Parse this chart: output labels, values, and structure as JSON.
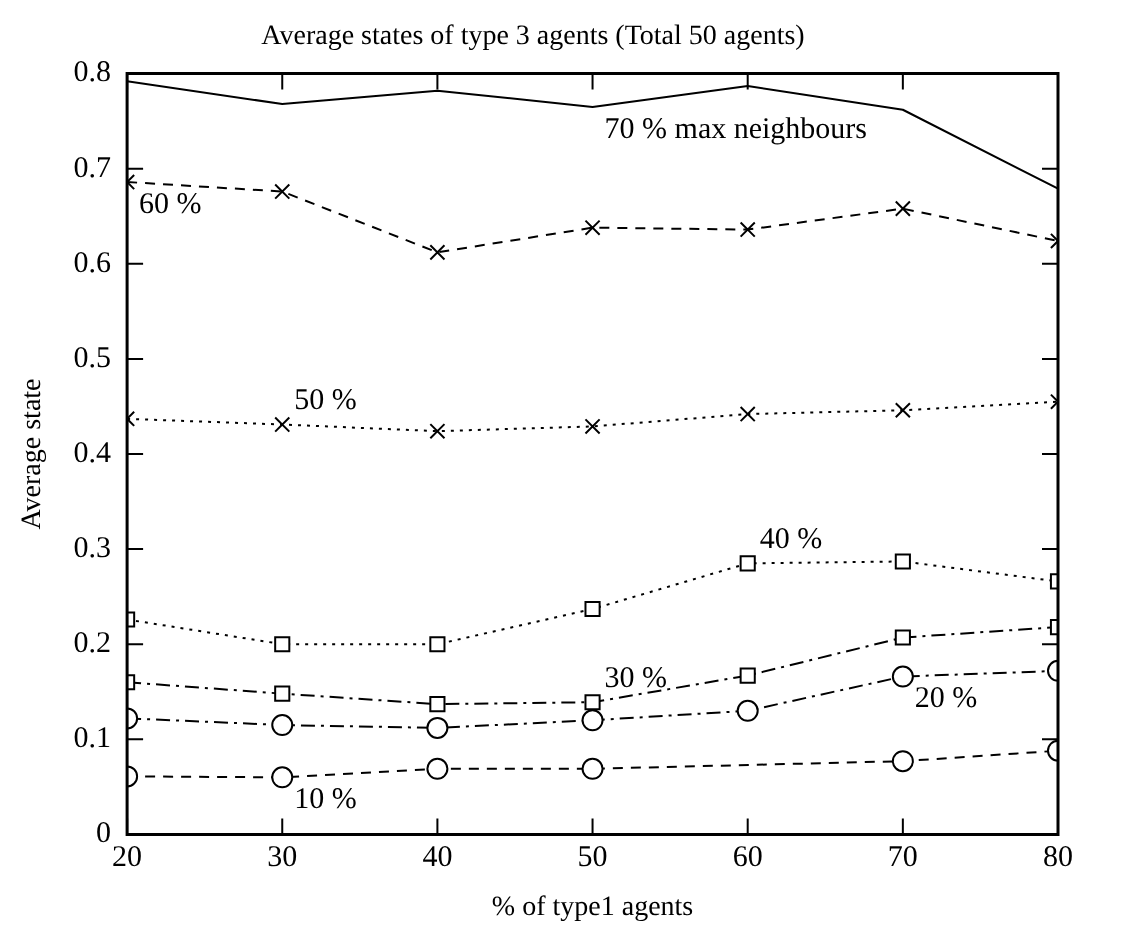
{
  "chart_data": {
    "type": "line",
    "title": "Average states of type 3 agents (Total 50 agents)",
    "xlabel": "% of type1 agents",
    "ylabel": "Average state",
    "x": [
      20,
      30,
      40,
      50,
      60,
      70,
      80
    ],
    "series": [
      {
        "color": "#000000",
        "marker": "none",
        "line_style": "solid",
        "values": [
          0.792,
          0.768,
          0.782,
          0.765,
          0.787,
          0.762,
          0.679
        ]
      },
      {
        "color": "#000000",
        "marker": "cross",
        "line_style": "dashed",
        "values": [
          0.686,
          0.676,
          0.612,
          0.638,
          0.636,
          0.658,
          0.624
        ]
      },
      {
        "color": "#000000",
        "marker": "cross",
        "line_style": "dotted",
        "values": [
          0.437,
          0.431,
          0.424,
          0.429,
          0.442,
          0.446,
          0.455
        ]
      },
      {
        "color": "#000000",
        "marker": "square",
        "line_style": "dotted",
        "values": [
          0.226,
          0.2,
          0.2,
          0.237,
          0.285,
          0.287,
          0.266
        ]
      },
      {
        "color": "#000000",
        "marker": "square",
        "line_style": "dashdot",
        "values": [
          0.16,
          0.148,
          0.137,
          0.139,
          0.167,
          0.207,
          0.218
        ]
      },
      {
        "color": "#000000",
        "marker": "circle",
        "line_style": "dashdot",
        "values": [
          0.122,
          0.115,
          0.112,
          0.12,
          0.13,
          0.166,
          0.172
        ]
      },
      {
        "color": "#000000",
        "marker": "circle",
        "line_style": "dashed",
        "x": [
          20,
          30,
          40,
          50,
          70,
          80
        ],
        "values": [
          0.061,
          0.06,
          0.069,
          0.069,
          0.077,
          0.088
        ]
      }
    ],
    "annotations": [
      {
        "text": "70 % max neighbours",
        "x": 50,
        "y": 0.765
      },
      {
        "text": "60 %",
        "x": 20,
        "y": 0.686
      },
      {
        "text": "50 %",
        "x": 30,
        "y": 0.431
      },
      {
        "text": "40 %",
        "x": 60,
        "y": 0.285
      },
      {
        "text": "30 %",
        "x": 50,
        "y": 0.139
      },
      {
        "text": "20 %",
        "x": 70,
        "y": 0.166
      },
      {
        "text": "10 %",
        "x": 30,
        "y": 0.06
      }
    ],
    "xlim": [
      20,
      80
    ],
    "xticks": [
      20,
      30,
      40,
      50,
      60,
      70,
      80
    ],
    "ylim": [
      0,
      0.8
    ],
    "yticks": [
      0,
      0.1,
      0.2,
      0.3,
      0.4,
      0.5,
      0.6,
      0.7,
      0.8
    ],
    "grid": false,
    "legend": false
  }
}
